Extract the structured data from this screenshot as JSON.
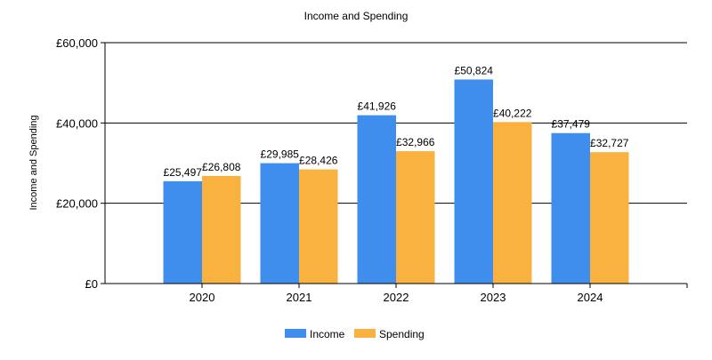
{
  "chart_data": {
    "type": "bar",
    "title": "Income and Spending",
    "xlabel": "",
    "ylabel": "Income and Spending",
    "categories": [
      "2020",
      "2021",
      "2022",
      "2023",
      "2024"
    ],
    "series": [
      {
        "name": "Income",
        "color": "#3f8ded",
        "values": [
          25497,
          29985,
          41926,
          50824,
          37479
        ],
        "labels": [
          "£25,497",
          "£29,985",
          "£41,926",
          "£50,824",
          "£37,479"
        ]
      },
      {
        "name": "Spending",
        "color": "#f9b140",
        "values": [
          26808,
          28426,
          32966,
          40222,
          32727
        ],
        "labels": [
          "£26,808",
          "£28,426",
          "£32,966",
          "£40,222",
          "£32,727"
        ]
      }
    ],
    "ylim": [
      0,
      60000
    ],
    "yticks": [
      0,
      20000,
      40000,
      60000
    ],
    "ytick_labels": [
      "£0",
      "£20,000",
      "£40,000",
      "£60,000"
    ],
    "grid": true,
    "legend_position": "bottom-center"
  }
}
